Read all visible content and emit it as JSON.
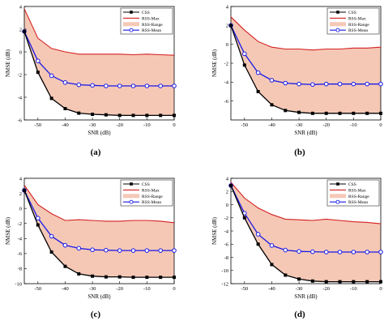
{
  "figure": {
    "panels": [
      "(a)",
      "(b)",
      "(c)",
      "(d)"
    ]
  },
  "legend": {
    "css": "CSS",
    "rss_max": "RSS-Max",
    "rss_range": "RSS-Range",
    "rss_mean": "RSS-Mean"
  },
  "colors": {
    "css": "#000000",
    "rss_max": "#d42020",
    "rss_range_fill": "#f5c8b6",
    "rss_mean": "#1a1ae6"
  },
  "chart_data": [
    {
      "type": "line",
      "panel_label": "(a)",
      "xlabel": "SNR (dB)",
      "ylabel": "NMSE (dB)",
      "xlim": [
        -55,
        0
      ],
      "ylim": [
        -6,
        4
      ],
      "x_ticks": [
        -50,
        -40,
        -30,
        -20,
        -10,
        0
      ],
      "y_ticks": [
        -6,
        -4,
        -2,
        0,
        2,
        4
      ],
      "x": [
        -55,
        -50,
        -45,
        -40,
        -35,
        -30,
        -25,
        -20,
        -15,
        -10,
        -5,
        0
      ],
      "series": [
        {
          "name": "CSS",
          "values": [
            1.8,
            -1.8,
            -4.1,
            -5.0,
            -5.4,
            -5.5,
            -5.55,
            -5.6,
            -5.6,
            -5.6,
            -5.6,
            -5.6
          ]
        },
        {
          "name": "RSS-Max",
          "values": [
            3.8,
            1.2,
            0.3,
            0.0,
            -0.2,
            -0.2,
            -0.2,
            -0.2,
            -0.25,
            -0.2,
            -0.25,
            -0.3
          ]
        },
        {
          "name": "RSS-Mean",
          "values": [
            1.8,
            -0.8,
            -2.1,
            -2.7,
            -2.9,
            -2.95,
            -3.0,
            -3.0,
            -3.0,
            -3.0,
            -3.0,
            -3.0
          ]
        }
      ],
      "range_lower": [
        1.8,
        -1.8,
        -4.1,
        -5.0,
        -5.4,
        -5.5,
        -5.55,
        -5.6,
        -5.6,
        -5.6,
        -5.6,
        -5.6
      ],
      "range_upper": [
        3.8,
        1.2,
        0.3,
        0.0,
        -0.2,
        -0.2,
        -0.2,
        -0.2,
        -0.25,
        -0.2,
        -0.25,
        -0.3
      ],
      "grid": false,
      "legend_position": "top-right"
    },
    {
      "type": "line",
      "panel_label": "(b)",
      "xlabel": "SNR (dB)",
      "ylabel": "NMSE (dB)",
      "xlim": [
        -55,
        0
      ],
      "ylim": [
        -8,
        4
      ],
      "x_ticks": [
        -50,
        -40,
        -30,
        -20,
        -10,
        0
      ],
      "y_ticks": [
        -6,
        -4,
        -2,
        0,
        2,
        4
      ],
      "x": [
        -55,
        -50,
        -45,
        -40,
        -35,
        -30,
        -25,
        -20,
        -15,
        -10,
        -5,
        0
      ],
      "series": [
        {
          "name": "CSS",
          "values": [
            2.0,
            -2.2,
            -5.0,
            -6.4,
            -7.0,
            -7.2,
            -7.3,
            -7.3,
            -7.3,
            -7.3,
            -7.3,
            -7.3
          ]
        },
        {
          "name": "RSS-Max",
          "values": [
            2.9,
            1.5,
            0.3,
            -0.3,
            -0.5,
            -0.5,
            -0.6,
            -0.5,
            -0.5,
            -0.4,
            -0.4,
            -0.3
          ]
        },
        {
          "name": "RSS-Mean",
          "values": [
            2.0,
            -1.0,
            -3.0,
            -3.8,
            -4.1,
            -4.2,
            -4.25,
            -4.2,
            -4.2,
            -4.2,
            -4.2,
            -4.2
          ]
        }
      ],
      "range_lower": [
        2.0,
        -2.2,
        -5.0,
        -6.4,
        -7.0,
        -7.2,
        -7.3,
        -7.3,
        -7.3,
        -7.3,
        -7.3,
        -7.3
      ],
      "range_upper": [
        2.9,
        1.5,
        0.3,
        -0.3,
        -0.5,
        -0.5,
        -0.6,
        -0.5,
        -0.5,
        -0.4,
        -0.4,
        -0.3
      ],
      "grid": false,
      "legend_position": "top-right"
    },
    {
      "type": "line",
      "panel_label": "(c)",
      "xlabel": "SNR (dB)",
      "ylabel": "NMSE (dB)",
      "xlim": [
        -55,
        0
      ],
      "ylim": [
        -10,
        4
      ],
      "x_ticks": [
        -50,
        -40,
        -30,
        -20,
        -10,
        0
      ],
      "y_ticks": [
        -10,
        -8,
        -6,
        -4,
        -2,
        0,
        2,
        4
      ],
      "x": [
        -55,
        -50,
        -45,
        -40,
        -35,
        -30,
        -25,
        -20,
        -15,
        -10,
        -5,
        0
      ],
      "series": [
        {
          "name": "CSS",
          "values": [
            2.4,
            -2.2,
            -5.8,
            -7.7,
            -8.7,
            -9.0,
            -9.1,
            -9.1,
            -9.15,
            -9.15,
            -9.15,
            -9.15
          ]
        },
        {
          "name": "RSS-Max",
          "values": [
            3.1,
            0.5,
            -0.7,
            -1.6,
            -1.5,
            -1.6,
            -1.7,
            -1.7,
            -1.6,
            -1.6,
            -1.7,
            -1.9
          ]
        },
        {
          "name": "RSS-Mean",
          "values": [
            2.4,
            -1.3,
            -3.7,
            -4.9,
            -5.3,
            -5.5,
            -5.55,
            -5.6,
            -5.6,
            -5.6,
            -5.6,
            -5.6
          ]
        }
      ],
      "range_lower": [
        2.4,
        -2.2,
        -5.8,
        -7.7,
        -8.7,
        -9.0,
        -9.1,
        -9.1,
        -9.15,
        -9.15,
        -9.15,
        -9.15
      ],
      "range_upper": [
        3.1,
        0.5,
        -0.7,
        -1.6,
        -1.5,
        -1.6,
        -1.7,
        -1.7,
        -1.6,
        -1.6,
        -1.7,
        -1.9
      ],
      "grid": false,
      "legend_position": "top-right"
    },
    {
      "type": "line",
      "panel_label": "(d)",
      "xlabel": "SNR (dB)",
      "ylabel": "NMSE (dB)",
      "xlim": [
        -55,
        0
      ],
      "ylim": [
        -12,
        4
      ],
      "x_ticks": [
        -50,
        -40,
        -30,
        -20,
        -10,
        0
      ],
      "y_ticks": [
        -12,
        -10,
        -8,
        -6,
        -4,
        -2,
        0,
        2,
        4
      ],
      "x": [
        -55,
        -50,
        -45,
        -40,
        -35,
        -30,
        -25,
        -20,
        -15,
        -10,
        -5,
        0
      ],
      "series": [
        {
          "name": "CSS",
          "values": [
            2.9,
            -2.0,
            -6.0,
            -9.1,
            -10.7,
            -11.3,
            -11.6,
            -11.7,
            -11.7,
            -11.7,
            -11.7,
            -11.7
          ]
        },
        {
          "name": "RSS-Max",
          "values": [
            3.4,
            1.0,
            -0.5,
            -1.5,
            -2.2,
            -2.3,
            -2.4,
            -2.2,
            -2.4,
            -2.6,
            -2.7,
            -2.9
          ]
        },
        {
          "name": "RSS-Mean",
          "values": [
            2.9,
            -1.3,
            -4.5,
            -6.2,
            -6.9,
            -7.1,
            -7.15,
            -7.2,
            -7.2,
            -7.2,
            -7.2,
            -7.2
          ]
        }
      ],
      "range_lower": [
        2.9,
        -2.0,
        -6.0,
        -9.1,
        -10.7,
        -11.3,
        -11.6,
        -11.7,
        -11.7,
        -11.7,
        -11.7,
        -11.7
      ],
      "range_upper": [
        3.4,
        1.0,
        -0.5,
        -1.5,
        -2.2,
        -2.3,
        -2.4,
        -2.2,
        -2.4,
        -2.6,
        -2.7,
        -2.9
      ],
      "grid": false,
      "legend_position": "top-right"
    }
  ]
}
